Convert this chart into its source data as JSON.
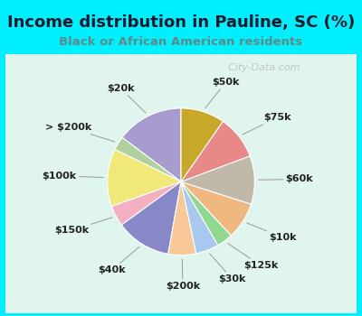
{
  "title": "Income distribution in Pauline, SC (%)",
  "subtitle": "Black or African American residents",
  "title_color": "#1a1a2e",
  "subtitle_color": "#5b8a8a",
  "bg_cyan": "#00efff",
  "bg_chart": "#e0f5ee",
  "watermark": "City-Data.com",
  "labels": [
    "$20k",
    "> $200k",
    "$100k",
    "$150k",
    "$40k",
    "$200k",
    "$30k",
    "$125k",
    "$10k",
    "$60k",
    "$75k",
    "$50k"
  ],
  "values": [
    14.5,
    3.0,
    12.5,
    4.5,
    12.0,
    6.0,
    5.0,
    3.5,
    8.0,
    10.5,
    9.5,
    9.5
  ],
  "colors": [
    "#a89cce",
    "#b0d0a0",
    "#f0e878",
    "#f4b0c0",
    "#8888c8",
    "#f8c898",
    "#a8c8f0",
    "#90d890",
    "#f0b880",
    "#c0b8a8",
    "#e88888",
    "#c8a828"
  ],
  "startangle": 90,
  "figsize": [
    4.0,
    3.5
  ],
  "dpi": 100,
  "title_fontsize": 13,
  "subtitle_fontsize": 9.5,
  "label_fontsize": 8,
  "label_color": "#222222"
}
